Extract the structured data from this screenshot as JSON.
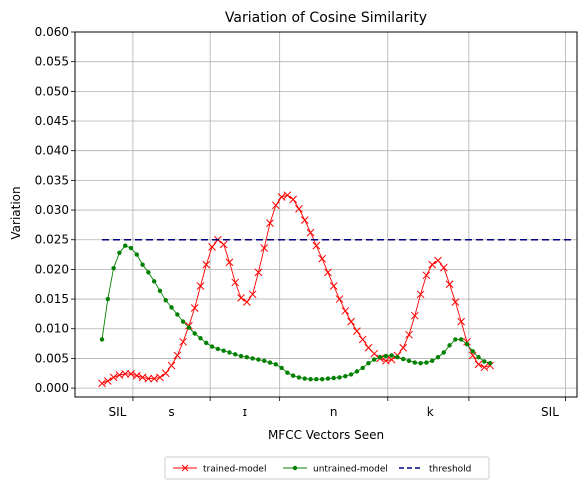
{
  "chart_data": {
    "type": "line",
    "title": "Variation of Cosine Similarity",
    "xlabel": "MFCC Vectors Seen",
    "ylabel": "Variation",
    "xlim": [
      -7,
      123
    ],
    "ylim": [
      -0.0015,
      0.06
    ],
    "yticks": [
      0.0,
      0.005,
      0.01,
      0.015,
      0.02,
      0.025,
      0.03,
      0.035,
      0.04,
      0.045,
      0.05,
      0.055,
      0.06
    ],
    "ytick_labels": [
      "0.000",
      "0.005",
      "0.010",
      "0.015",
      "0.020",
      "0.025",
      "0.030",
      "0.035",
      "0.040",
      "0.045",
      "0.050",
      "0.055",
      "0.060"
    ],
    "x_boundaries": [
      8,
      28,
      46,
      74,
      95,
      120
    ],
    "x_phonemes": [
      {
        "label": "SIL",
        "x": 4
      },
      {
        "label": "s",
        "x": 18
      },
      {
        "label": "ɪ",
        "x": 37
      },
      {
        "label": "n",
        "x": 60
      },
      {
        "label": "k",
        "x": 85
      },
      {
        "label": "SIL",
        "x": 116
      }
    ],
    "grid": true,
    "legend_position": "below-center",
    "series": [
      {
        "name": "trained-model",
        "color": "#ff0000",
        "marker": "x",
        "x": [
          0,
          1.5,
          3,
          4.5,
          6,
          7.5,
          9,
          10.5,
          12,
          13.5,
          15,
          16.5,
          18,
          19.5,
          21,
          22.5,
          24,
          25.5,
          27,
          28.5,
          30,
          31.5,
          33,
          34.5,
          36,
          37.5,
          39,
          40.5,
          42,
          43.5,
          45,
          46.5,
          48,
          49.5,
          51,
          52.5,
          54,
          55.5,
          57,
          58.5,
          60,
          61.5,
          63,
          64.5,
          66,
          67.5,
          69,
          70.5,
          72,
          73.5,
          75,
          76.5,
          78,
          79.5,
          81,
          82.5,
          84,
          85.5,
          87,
          88.5,
          90,
          91.5,
          93,
          94.5,
          96,
          97.5,
          99,
          100.5
        ],
        "y": [
          0.0008,
          0.0012,
          0.0018,
          0.0022,
          0.0024,
          0.0024,
          0.0021,
          0.0018,
          0.0016,
          0.0016,
          0.0018,
          0.0025,
          0.0038,
          0.0055,
          0.0078,
          0.0105,
          0.0135,
          0.0172,
          0.0208,
          0.0238,
          0.025,
          0.0242,
          0.0212,
          0.0178,
          0.0152,
          0.0145,
          0.0158,
          0.0195,
          0.0236,
          0.0278,
          0.0308,
          0.0322,
          0.0325,
          0.0318,
          0.0302,
          0.0283,
          0.0262,
          0.024,
          0.0218,
          0.0195,
          0.0172,
          0.015,
          0.013,
          0.0112,
          0.0096,
          0.0082,
          0.0068,
          0.0058,
          0.005,
          0.0046,
          0.0048,
          0.0055,
          0.0068,
          0.009,
          0.0122,
          0.0158,
          0.019,
          0.0208,
          0.0215,
          0.0203,
          0.0175,
          0.0145,
          0.0112,
          0.0078,
          0.0055,
          0.004,
          0.0035,
          0.0038
        ]
      },
      {
        "name": "untrained-model",
        "color": "#008000",
        "marker": "dot",
        "x": [
          0,
          1.5,
          3,
          4.5,
          6,
          7.5,
          9,
          10.5,
          12,
          13.5,
          15,
          16.5,
          18,
          19.5,
          21,
          22.5,
          24,
          25.5,
          27,
          28.5,
          30,
          31.5,
          33,
          34.5,
          36,
          37.5,
          39,
          40.5,
          42,
          43.5,
          45,
          46.5,
          48,
          49.5,
          51,
          52.5,
          54,
          55.5,
          57,
          58.5,
          60,
          61.5,
          63,
          64.5,
          66,
          67.5,
          69,
          70.5,
          72,
          73.5,
          75,
          76.5,
          78,
          79.5,
          81,
          82.5,
          84,
          85.5,
          87,
          88.5,
          90,
          91.5,
          93,
          94.5,
          96,
          97.5,
          99,
          100.5
        ],
        "y": [
          0.0082,
          0.015,
          0.0202,
          0.0228,
          0.024,
          0.0236,
          0.0225,
          0.0208,
          0.0195,
          0.018,
          0.0164,
          0.0148,
          0.0136,
          0.0124,
          0.0112,
          0.0102,
          0.0092,
          0.0084,
          0.0076,
          0.007,
          0.0066,
          0.0063,
          0.006,
          0.0057,
          0.0054,
          0.0052,
          0.005,
          0.0048,
          0.0046,
          0.0043,
          0.004,
          0.0034,
          0.0026,
          0.0021,
          0.0018,
          0.0016,
          0.0015,
          0.0015,
          0.0015,
          0.0016,
          0.0017,
          0.0018,
          0.002,
          0.0023,
          0.0028,
          0.0034,
          0.0042,
          0.0048,
          0.0052,
          0.0054,
          0.0055,
          0.0052,
          0.0049,
          0.0046,
          0.0043,
          0.0042,
          0.0043,
          0.0046,
          0.0052,
          0.006,
          0.0072,
          0.0082,
          0.0082,
          0.0074,
          0.0062,
          0.0052,
          0.0045,
          0.0042
        ]
      },
      {
        "name": "threshold",
        "color": "#000080",
        "style": "dashed",
        "x": [
          0,
          122
        ],
        "y": [
          0.025,
          0.025
        ]
      }
    ]
  }
}
